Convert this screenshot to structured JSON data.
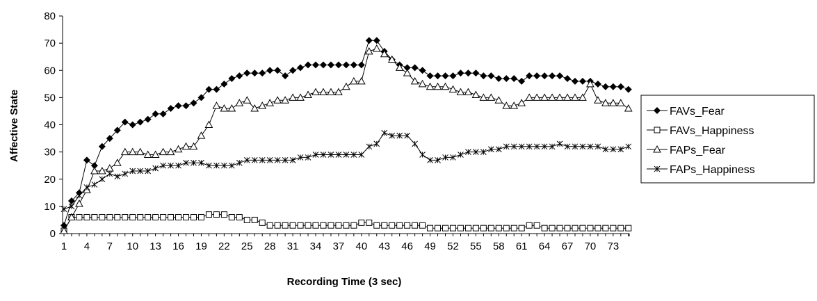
{
  "chart_data": {
    "type": "line",
    "title": "",
    "xlabel": "Recording Time (3 sec)",
    "ylabel": "Affective State",
    "ylim": [
      0,
      80
    ],
    "yticks": [
      0,
      10,
      20,
      30,
      40,
      50,
      60,
      70,
      80
    ],
    "xlim": [
      1,
      75
    ],
    "xticks": [
      1,
      4,
      7,
      10,
      13,
      16,
      19,
      22,
      25,
      28,
      31,
      34,
      37,
      40,
      43,
      46,
      49,
      52,
      55,
      58,
      61,
      64,
      67,
      70,
      73
    ],
    "grid": false,
    "legend_position": "right",
    "series": [
      {
        "name": "FAVs_Fear",
        "marker": "diamond-filled",
        "values": [
          3,
          12,
          15,
          27,
          25,
          32,
          35,
          38,
          41,
          40,
          41,
          42,
          44,
          44,
          46,
          47,
          47,
          48,
          50,
          53,
          53,
          55,
          57,
          58,
          59,
          59,
          59,
          60,
          60,
          58,
          60,
          61,
          62,
          62,
          62,
          62,
          62,
          62,
          62,
          62,
          71,
          71,
          67,
          64,
          62,
          61,
          61,
          60,
          58,
          58,
          58,
          58,
          59,
          59,
          59,
          58,
          58,
          57,
          57,
          57,
          56,
          58,
          58,
          58,
          58,
          58,
          57,
          56,
          56,
          56,
          55,
          54,
          54,
          54,
          53
        ]
      },
      {
        "name": "FAVs_Happiness",
        "marker": "square-open",
        "values": [
          1,
          6,
          6,
          6,
          6,
          6,
          6,
          6,
          6,
          6,
          6,
          6,
          6,
          6,
          6,
          6,
          6,
          6,
          6,
          7,
          7,
          7,
          6,
          6,
          5,
          5,
          4,
          3,
          3,
          3,
          3,
          3,
          3,
          3,
          3,
          3,
          3,
          3,
          3,
          4,
          4,
          3,
          3,
          3,
          3,
          3,
          3,
          3,
          2,
          2,
          2,
          2,
          2,
          2,
          2,
          2,
          2,
          2,
          2,
          2,
          2,
          3,
          3,
          2,
          2,
          2,
          2,
          2,
          2,
          2,
          2,
          2,
          2,
          2,
          2
        ]
      },
      {
        "name": "FAPs_Fear",
        "marker": "triangle-open",
        "values": [
          1,
          6,
          11,
          16,
          23,
          23,
          24,
          26,
          30,
          30,
          30,
          29,
          29,
          30,
          30,
          31,
          32,
          32,
          36,
          40,
          47,
          46,
          46,
          48,
          49,
          46,
          47,
          48,
          49,
          49,
          50,
          50,
          51,
          52,
          52,
          52,
          52,
          54,
          56,
          56,
          67,
          68,
          66,
          64,
          61,
          59,
          56,
          55,
          54,
          54,
          54,
          53,
          52,
          52,
          51,
          50,
          50,
          49,
          47,
          47,
          48,
          50,
          50,
          50,
          50,
          50,
          50,
          50,
          50,
          55,
          49,
          48,
          48,
          48,
          46
        ]
      },
      {
        "name": "FAPs_Happiness",
        "marker": "star",
        "values": [
          9,
          10,
          14,
          17,
          18,
          20,
          22,
          21,
          22,
          23,
          23,
          23,
          24,
          25,
          25,
          25,
          26,
          26,
          26,
          25,
          25,
          25,
          25,
          26,
          27,
          27,
          27,
          27,
          27,
          27,
          27,
          28,
          28,
          29,
          29,
          29,
          29,
          29,
          29,
          29,
          32,
          33,
          37,
          36,
          36,
          36,
          33,
          29,
          27,
          27,
          28,
          28,
          29,
          30,
          30,
          30,
          31,
          31,
          32,
          32,
          32,
          32,
          32,
          32,
          32,
          33,
          32,
          32,
          32,
          32,
          32,
          31,
          31,
          31,
          32
        ]
      }
    ]
  }
}
